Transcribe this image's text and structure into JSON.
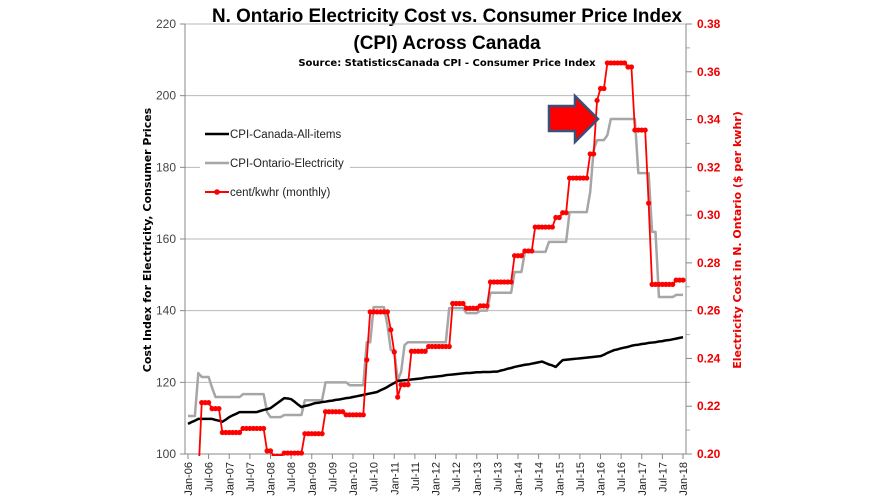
{
  "chart_data": {
    "type": "line",
    "title": "N. Ontario Electricity Cost vs. Consumer Price Index",
    "title_line2": "(CPI) Across Canada",
    "subtitle": "Source: StatisticsCanada  CPI - Consumer Price Index",
    "ylabel": "Cost Index for Electricity, Consumer Prices",
    "ylabel_right": "Electricity Cost in N. Ontario ($ per kwhr)",
    "ylim": [
      100,
      220
    ],
    "ylim_right": [
      0.2,
      0.38
    ],
    "yticks": [
      "100",
      "120",
      "140",
      "160",
      "180",
      "200",
      "220"
    ],
    "yticks_right": [
      "0.20",
      "0.22",
      "0.24",
      "0.26",
      "0.28",
      "0.30",
      "0.32",
      "0.34",
      "0.36",
      "0.38"
    ],
    "x_frequency": "monthly",
    "x_range": [
      "Jan-06",
      "Jan-18"
    ],
    "xticks": [
      "Jan-06",
      "Jul-06",
      "Jan-07",
      "Jul-07",
      "Jan-08",
      "Jul-08",
      "Jan-09",
      "Jul-09",
      "Jan-10",
      "Jul-10",
      "Jan-11",
      "Jul-11",
      "Jan-12",
      "Jul-12",
      "Jan-13",
      "Jul-13",
      "Jan-14",
      "Jul-14",
      "Jan-15",
      "Jul-15",
      "Jan-16",
      "Jul-16",
      "Jan-17",
      "Jul-17",
      "Jan-18"
    ],
    "grid": "horizontal",
    "legend_placement": "upper-left",
    "annotation": "red block arrow pointing at the Jan-16 price jump",
    "series": [
      {
        "name": "CPI-Canada-All-items",
        "axis": "left",
        "color": "#000000",
        "values": [
          108.4,
          108.9,
          109.3,
          109.8,
          109.8,
          109.8,
          109.8,
          109.8,
          109.5,
          109.3,
          109.0,
          109.6,
          110.3,
          110.8,
          111.2,
          111.7,
          111.7,
          111.7,
          111.7,
          111.7,
          111.7,
          112.0,
          112.3,
          112.5,
          112.8,
          113.5,
          114.2,
          114.9,
          115.6,
          115.5,
          115.3,
          114.6,
          113.8,
          113.1,
          113.4,
          113.6,
          113.9,
          114.2,
          114.3,
          114.5,
          114.6,
          114.8,
          114.9,
          115.1,
          115.2,
          115.4,
          115.6,
          115.7,
          115.9,
          116.1,
          116.3,
          116.5,
          116.7,
          116.9,
          117.1,
          117.3,
          117.8,
          118.2,
          118.7,
          119.3,
          119.8,
          120.4,
          120.5,
          120.6,
          120.7,
          120.8,
          120.9,
          121.0,
          121.1,
          121.3,
          121.4,
          121.5,
          121.6,
          121.7,
          121.8,
          122.0,
          122.1,
          122.2,
          122.3,
          122.4,
          122.5,
          122.6,
          122.6,
          122.7,
          122.8,
          122.8,
          122.9,
          122.9,
          122.9,
          123.0,
          123.0,
          123.3,
          123.5,
          123.8,
          124.0,
          124.3,
          124.5,
          124.7,
          124.9,
          125.0,
          125.2,
          125.4,
          125.6,
          125.8,
          125.4,
          125.0,
          124.7,
          124.3,
          125.3,
          126.2,
          126.3,
          126.4,
          126.5,
          126.6,
          126.7,
          126.8,
          126.9,
          127.0,
          127.1,
          127.2,
          127.3,
          127.7,
          128.2,
          128.6,
          129.0,
          129.2,
          129.5,
          129.7,
          129.9,
          130.2,
          130.4,
          130.5,
          130.7,
          130.8,
          131.0,
          131.1,
          131.2,
          131.4,
          131.5,
          131.7,
          131.8,
          132.0,
          132.2,
          132.4,
          132.6
        ]
      },
      {
        "name": "CPI-Ontario-Electricity",
        "axis": "left",
        "color": "#a6a6a6",
        "values": [
          110.6,
          110.6,
          110.6,
          122.6,
          121.5,
          121.5,
          121.5,
          118.5,
          115.9,
          115.9,
          115.9,
          115.9,
          115.9,
          115.9,
          115.9,
          115.9,
          116.7,
          116.7,
          116.7,
          116.7,
          116.7,
          116.7,
          116.7,
          111.7,
          110.3,
          110.3,
          110.3,
          110.3,
          110.9,
          110.9,
          110.9,
          110.9,
          110.9,
          110.9,
          115,
          115,
          115,
          115,
          115,
          115,
          120,
          120,
          120,
          120,
          120,
          120,
          120,
          119.2,
          119.2,
          119.2,
          119.2,
          119.2,
          131.2,
          131.2,
          141,
          141,
          141,
          141,
          136,
          129,
          129,
          120.6,
          122.9,
          130.4,
          131.2,
          131.2,
          131.2,
          131.2,
          131.2,
          131.2,
          131.2,
          131.2,
          131.2,
          131.2,
          131.2,
          131.2,
          140.7,
          140.7,
          140.7,
          140.7,
          140.7,
          139.3,
          139.3,
          139.3,
          139.3,
          140,
          140,
          140,
          145,
          145,
          145,
          145,
          145,
          145,
          145,
          150.8,
          150.8,
          150.8,
          156.4,
          156.4,
          156.4,
          156.4,
          156.4,
          156.4,
          156.4,
          159.2,
          159.2,
          159.2,
          159.2,
          159.2,
          159.2,
          167.5,
          167.5,
          167.5,
          167.5,
          167.5,
          167.5,
          173.1,
          184.8,
          187.6,
          187.6,
          187.6,
          189,
          193.5,
          193.5,
          193.5,
          193.5,
          193.5,
          193.5,
          193.5,
          193.5,
          178.4,
          178.4,
          178.4,
          178.4,
          162,
          162,
          143.8,
          143.8,
          143.8,
          143.8,
          143.8,
          144.4,
          144.4,
          144.4
        ]
      },
      {
        "name": "cent/kwhr (monthly)",
        "axis": "right",
        "color": "#ff0000",
        "marker": "circle",
        "values": [
          0.19,
          0.19,
          0.19,
          0.19,
          0.2215,
          0.2215,
          0.2215,
          0.219,
          0.219,
          0.219,
          0.209,
          0.209,
          0.209,
          0.209,
          0.209,
          0.209,
          0.2107,
          0.2107,
          0.2107,
          0.2107,
          0.2107,
          0.2107,
          0.2107,
          0.2013,
          0.2013,
          0.199,
          0.199,
          0.199,
          0.2004,
          0.2004,
          0.2004,
          0.2004,
          0.2004,
          0.2004,
          0.2085,
          0.2085,
          0.2085,
          0.2085,
          0.2085,
          0.2085,
          0.2177,
          0.2177,
          0.2177,
          0.2177,
          0.2177,
          0.2177,
          0.2164,
          0.2164,
          0.2164,
          0.2164,
          0.2164,
          0.2164,
          0.2394,
          0.2595,
          0.2595,
          0.2595,
          0.2595,
          0.2595,
          0.2595,
          0.252,
          0.2427,
          0.2238,
          0.229,
          0.229,
          0.229,
          0.243,
          0.243,
          0.243,
          0.243,
          0.243,
          0.245,
          0.245,
          0.245,
          0.245,
          0.245,
          0.245,
          0.245,
          0.263,
          0.263,
          0.263,
          0.263,
          0.261,
          0.261,
          0.261,
          0.261,
          0.262,
          0.262,
          0.262,
          0.272,
          0.272,
          0.272,
          0.272,
          0.272,
          0.272,
          0.272,
          0.283,
          0.283,
          0.283,
          0.285,
          0.285,
          0.285,
          0.295,
          0.295,
          0.295,
          0.295,
          0.295,
          0.295,
          0.299,
          0.299,
          0.301,
          0.301,
          0.3155,
          0.3155,
          0.3155,
          0.3155,
          0.3155,
          0.3155,
          0.3256,
          0.3256,
          0.348,
          0.353,
          0.353,
          0.3637,
          0.3637,
          0.3637,
          0.3637,
          0.3637,
          0.3637,
          0.362,
          0.362,
          0.3356,
          0.3356,
          0.3356,
          0.3356,
          0.305,
          0.271,
          0.271,
          0.271,
          0.271,
          0.271,
          0.271,
          0.271,
          0.2728,
          0.2728,
          0.2728
        ]
      }
    ]
  }
}
